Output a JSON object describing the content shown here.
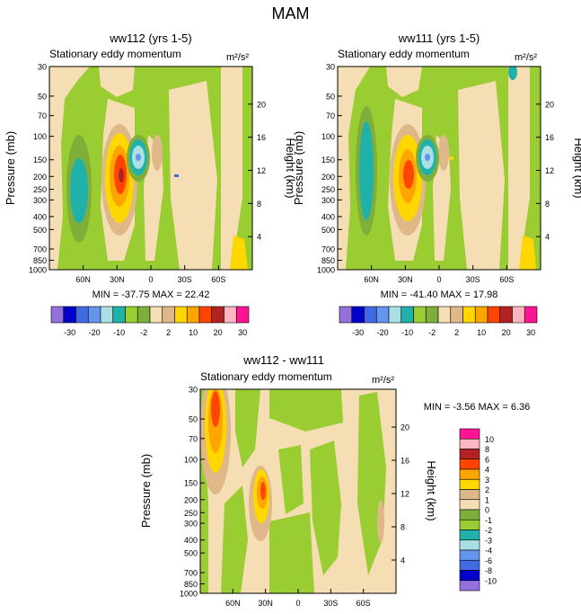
{
  "page_title": "MAM",
  "colors": {
    "palette": [
      "#9370db",
      "#0000cd",
      "#4169e1",
      "#6495ed",
      "#aadfe6",
      "#20b2aa",
      "#9acd32",
      "#7fae3a",
      "#f5deb3",
      "#dfb88a",
      "#ffd700",
      "#ffa500",
      "#ff4500",
      "#b22222",
      "#ffb6c1",
      "#ff1493"
    ],
    "wave_green": "#9acd32",
    "wave_green_dark": "#7fae3a",
    "wheat": "#f5deb3",
    "tan": "#dfb88a"
  },
  "chart_data": [
    {
      "type": "heatmap",
      "title": "ww112 (yrs 1-5)",
      "subtitle": "Stationary eddy momentum",
      "units": "m²/s²",
      "ylabel_left": "Pressure (mb)",
      "ylabel_right": "Height (km)",
      "x_ticks": [
        "60N",
        "30N",
        "0",
        "30S",
        "60S"
      ],
      "x_tick_lat": [
        60,
        30,
        0,
        -30,
        -60
      ],
      "xlim_lat": [
        90,
        -90
      ],
      "pressure_ticks": [
        30,
        50,
        70,
        100,
        150,
        200,
        250,
        300,
        400,
        500,
        700,
        850,
        1000
      ],
      "height_ticks": [
        4,
        8,
        12,
        16,
        20
      ],
      "ylim_pressure": [
        30,
        1000
      ],
      "stats": "MIN = -37.75  MAX =  22.42",
      "min": -37.75,
      "max": 22.42,
      "features": [
        {
          "name": "positive-max-30N",
          "lat": 27,
          "pressure": 200,
          "value": 22
        },
        {
          "name": "negative-min-15N",
          "lat": 15,
          "pressure": 150,
          "value": -37
        },
        {
          "name": "negative-60N",
          "lat": 68,
          "pressure": 200,
          "value": -3
        }
      ]
    },
    {
      "type": "heatmap",
      "title": "ww111 (yrs 1-5)",
      "subtitle": "Stationary eddy momentum",
      "units": "m²/s²",
      "ylabel_left": "Pressure (mb)",
      "ylabel_right": "Height (km)",
      "x_ticks": [
        "60N",
        "30N",
        "0",
        "30S",
        "60S"
      ],
      "x_tick_lat": [
        60,
        30,
        0,
        -30,
        -60
      ],
      "xlim_lat": [
        90,
        -90
      ],
      "pressure_ticks": [
        30,
        50,
        70,
        100,
        150,
        200,
        250,
        300,
        400,
        500,
        700,
        850,
        1000
      ],
      "height_ticks": [
        4,
        8,
        12,
        16,
        20
      ],
      "ylim_pressure": [
        30,
        1000
      ],
      "stats": "MIN = -41.40  MAX =  17.98",
      "min": -41.4,
      "max": 17.98,
      "features": [
        {
          "name": "positive-max-30N",
          "lat": 28,
          "pressure": 200,
          "value": 18
        },
        {
          "name": "negative-min-15N",
          "lat": 15,
          "pressure": 150,
          "value": -41
        },
        {
          "name": "negative-60N",
          "lat": 78,
          "pressure": 200,
          "value": -5
        }
      ]
    },
    {
      "type": "heatmap",
      "title": "ww112 - ww111",
      "subtitle": "Stationary eddy momentum",
      "units": "m²/s²",
      "ylabel_left": "Pressure (mb)",
      "ylabel_right": "Height (km)",
      "x_ticks": [
        "60N",
        "30N",
        "0",
        "30S",
        "60S"
      ],
      "x_tick_lat": [
        60,
        30,
        0,
        -30,
        -60
      ],
      "xlim_lat": [
        90,
        -90
      ],
      "pressure_ticks": [
        30,
        50,
        70,
        100,
        150,
        200,
        250,
        300,
        400,
        500,
        700,
        850,
        1000
      ],
      "height_ticks": [
        4,
        8,
        12,
        16,
        20
      ],
      "ylim_pressure": [
        30,
        1000
      ],
      "stats": "MIN =  -3.56  MAX =   6.36",
      "min": -3.56,
      "max": 6.36,
      "features": [
        {
          "name": "positive-max-70N-upper",
          "lat": 70,
          "pressure": 50,
          "value": 6
        },
        {
          "name": "positive-30N",
          "lat": 28,
          "pressure": 200,
          "value": 6
        }
      ]
    }
  ],
  "colorbar_horizontal": {
    "labels": [
      "-30",
      "-20",
      "-10",
      "-2",
      "2",
      "10",
      "20",
      "30"
    ],
    "boundary_index": [
      1,
      3,
      5,
      7,
      9,
      11,
      13,
      15
    ]
  },
  "colorbar_vertical": {
    "labels": [
      "10",
      "8",
      "6",
      "4",
      "3",
      "2",
      "1",
      "0",
      "-1",
      "-2",
      "-3",
      "-4",
      "-6",
      "-8",
      "-10"
    ]
  }
}
